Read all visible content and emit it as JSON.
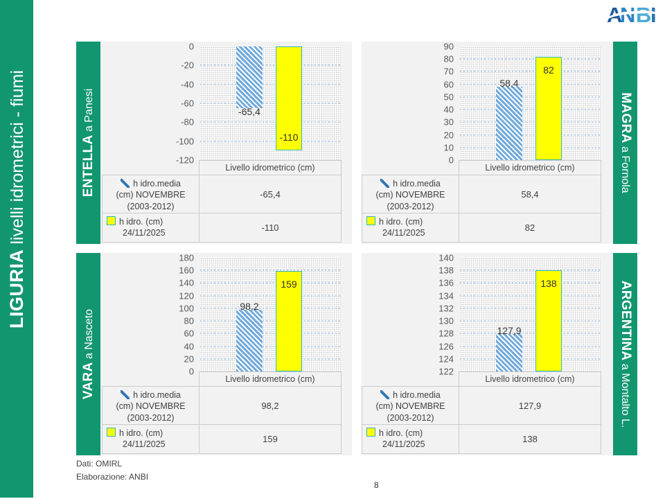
{
  "slide": {
    "title_bold": "LIGURIA",
    "title_rest": " livelli idrometrici - fiumi",
    "footer_line1": "Dati: OMIRL",
    "footer_line2": "Elaborazione: ANBI",
    "page_number": "8",
    "logo_letters": [
      "A",
      "N",
      "B",
      "I"
    ]
  },
  "colors": {
    "band_green": "#129670",
    "hatch_blue": "#6fa9dc",
    "bar_yellow": "#ffff00",
    "bar_yellow_border": "#2eb6be",
    "legend_marker_blue": "#2e75b6",
    "gridline_blue": "#b9d1e8"
  },
  "legend": {
    "series1_lines": [
      "h idro.media",
      "(cm) NOVEMBRE",
      "(2003-2012)"
    ],
    "series2_lines": [
      "h idro. (cm)",
      "24/11/2025"
    ]
  },
  "chart_data": [
    {
      "type": "bar",
      "station_bold": "ENTELLA",
      "station_rest": " a Panesi",
      "band_side": "left",
      "category": "Livello idrometrico (cm)",
      "ylim": [
        -120,
        0
      ],
      "bars_from": "top",
      "grid": true,
      "ticks": [
        "0",
        "-20",
        "-40",
        "-60",
        "-80",
        "-100",
        "-120"
      ],
      "series": [
        {
          "name": "h idro.media (cm) NOVEMBRE (2003-2012)",
          "value": -65.4,
          "label": "-65,4"
        },
        {
          "name": "h idro. (cm) 24/11/2025",
          "value": -110,
          "label": "-110"
        }
      ]
    },
    {
      "type": "bar",
      "station_bold": "MAGRA",
      "station_rest": " a Fornola",
      "band_side": "right",
      "category": "Livello idrometrico (cm)",
      "ylim": [
        0,
        90
      ],
      "bars_from": "bottom",
      "grid": true,
      "ticks": [
        "90",
        "80",
        "70",
        "60",
        "50",
        "40",
        "30",
        "20",
        "10",
        "0"
      ],
      "series": [
        {
          "name": "h idro.media (cm) NOVEMBRE (2003-2012)",
          "value": 58.4,
          "label": "58,4"
        },
        {
          "name": "h idro. (cm) 24/11/2025",
          "value": 82,
          "label": "82"
        }
      ]
    },
    {
      "type": "bar",
      "station_bold": "VARA",
      "station_rest": " a Nasceto",
      "band_side": "left",
      "category": "Livello idrometrico (cm)",
      "ylim": [
        0,
        180
      ],
      "bars_from": "bottom",
      "grid": true,
      "ticks": [
        "180",
        "160",
        "140",
        "120",
        "100",
        "80",
        "60",
        "40",
        "20",
        "0"
      ],
      "series": [
        {
          "name": "h idro.media (cm) NOVEMBRE (2003-2012)",
          "value": 98.2,
          "label": "98,2"
        },
        {
          "name": "h idro. (cm) 24/11/2025",
          "value": 159,
          "label": "159"
        }
      ]
    },
    {
      "type": "bar",
      "station_bold": "ARGENTINA",
      "station_rest": " a Montalto L.",
      "band_side": "right",
      "category": "Livello idrometrico (cm)",
      "ylim": [
        122,
        140
      ],
      "bars_from": "bottom",
      "grid": true,
      "ticks": [
        "140",
        "138",
        "136",
        "134",
        "132",
        "130",
        "128",
        "126",
        "124",
        "122"
      ],
      "series": [
        {
          "name": "h idro.media (cm) NOVEMBRE (2003-2012)",
          "value": 127.9,
          "label": "127,9"
        },
        {
          "name": "h idro. (cm) 24/11/2025",
          "value": 138,
          "label": "138"
        }
      ]
    }
  ]
}
